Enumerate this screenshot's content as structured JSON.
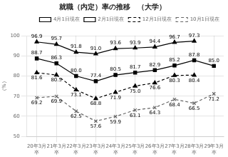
{
  "chart_data": {
    "type": "line",
    "title": "就職（内定）率の推移　（大学）",
    "ylabel": "（%）",
    "categories": [
      "20年3月\n卒",
      "21年3月\n卒",
      "22年3月\n卒",
      "23年3月\n卒",
      "24年3月\n卒",
      "25年3月\n卒",
      "26年3月\n卒",
      "27年3月\n卒",
      "28年3月\n卒",
      "29年3月\n卒"
    ],
    "ylim": [
      50,
      100
    ],
    "yticks": [
      50,
      60,
      70,
      80,
      90,
      100
    ],
    "grid": true,
    "legend": "upper right",
    "data_labels": true,
    "series": [
      {
        "name": "4月1日現在",
        "color": "#000000",
        "marker": "triangle",
        "line_style": "solid",
        "values": [
          96.9,
          95.7,
          91.8,
          91.0,
          93.6,
          93.9,
          94.4,
          96.7,
          97.3,
          null
        ],
        "value_labels": [
          "96.9",
          "95.7",
          "91.8",
          "91.0",
          "93.6",
          "93.9",
          "94.4",
          "96.7",
          "97.3",
          null
        ]
      },
      {
        "name": "2月1日現在",
        "color": "#000000",
        "marker": "square",
        "line_style": "solid",
        "values": [
          88.7,
          86.3,
          80.0,
          77.4,
          80.5,
          81.7,
          82.9,
          85.2,
          87.8,
          85.0
        ],
        "value_labels": [
          "88.7",
          "86.3",
          "80.0",
          "77.4",
          "80.5",
          "81.7",
          "82.9",
          "85.2",
          "87.8",
          "85.0"
        ]
      },
      {
        "name": "12月1日現在",
        "color": "#000000",
        "marker": "triangle",
        "line_style": "dashed",
        "values": [
          81.6,
          80.5,
          73.1,
          68.8,
          71.9,
          75.0,
          76.6,
          80.3,
          80.4,
          null
        ],
        "value_labels": [
          "81.6",
          "80.5",
          "73.1",
          "68.8",
          "71.9",
          "75.0",
          "76.6",
          "80.3",
          "80.4",
          null
        ]
      },
      {
        "name": "10月1日現在",
        "color": "#666666",
        "marker": "x",
        "line_style": "dashed",
        "values": [
          69.2,
          69.9,
          62.5,
          57.6,
          59.9,
          63.1,
          64.3,
          68.4,
          66.5,
          71.2
        ],
        "value_labels": [
          "69.2",
          "69.9",
          "62.5",
          "57.6",
          "59.9",
          "63.1",
          "64.3",
          "68.4",
          "66.5",
          "71.2"
        ]
      }
    ]
  }
}
